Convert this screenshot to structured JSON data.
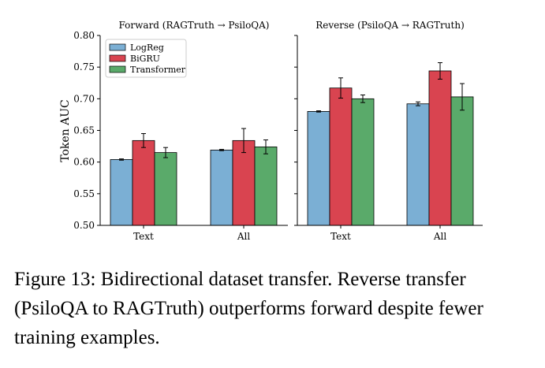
{
  "chart_data": {
    "type": "bar",
    "ylabel": "Token AUC",
    "ylim": [
      0.5,
      0.8
    ],
    "yticks": [
      "0.50",
      "0.55",
      "0.60",
      "0.65",
      "0.70",
      "0.75",
      "0.80"
    ],
    "grid": false,
    "legend": {
      "placement": "top-left",
      "entries": [
        "LogReg",
        "BiGRU",
        "Transformer"
      ]
    },
    "colors": {
      "LogReg": "#7bafd4",
      "BiGRU": "#d94450",
      "Transformer": "#5aaa6a"
    },
    "panels": [
      {
        "title": "Forward (RAGTruth → PsiloQA)",
        "categories": [
          "Text",
          "All"
        ],
        "series": [
          {
            "name": "LogReg",
            "values": [
              0.604,
              0.619
            ],
            "errors": [
              0.001,
              0.001
            ]
          },
          {
            "name": "BiGRU",
            "values": [
              0.634,
              0.634
            ],
            "errors": [
              0.011,
              0.019
            ]
          },
          {
            "name": "Transformer",
            "values": [
              0.615,
              0.624
            ],
            "errors": [
              0.008,
              0.011
            ]
          }
        ]
      },
      {
        "title": "Reverse (PsiloQA → RAGTruth)",
        "categories": [
          "Text",
          "All"
        ],
        "series": [
          {
            "name": "LogReg",
            "values": [
              0.68,
              0.692
            ],
            "errors": [
              0.001,
              0.003
            ]
          },
          {
            "name": "BiGRU",
            "values": [
              0.717,
              0.744
            ],
            "errors": [
              0.016,
              0.013
            ]
          },
          {
            "name": "Transformer",
            "values": [
              0.7,
              0.703
            ],
            "errors": [
              0.006,
              0.021
            ]
          }
        ]
      }
    ]
  },
  "caption": "Figure 13: Bidirectional dataset transfer. Reverse transfer (PsiloQA to RAGTruth) outperforms forward despite fewer training examples."
}
